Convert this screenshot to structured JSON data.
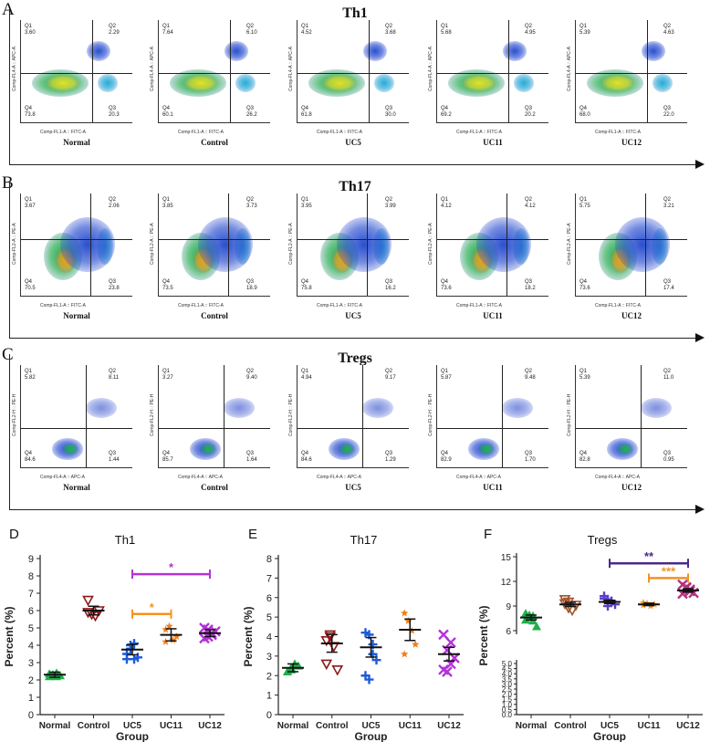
{
  "flow_sections": [
    {
      "letter": "A",
      "title": "Th1",
      "x_axis_label": "Comp-FL1-A :: FITC-A",
      "y_axis_label": "Comp-FL4-A :: APC-A",
      "panels": [
        {
          "group": "Normal",
          "q1": "3.60",
          "q2": "2.29",
          "q3": "20.3",
          "q4": "73.8"
        },
        {
          "group": "Control",
          "q1": "7.64",
          "q2": "6.10",
          "q3": "26.2",
          "q4": "60.1"
        },
        {
          "group": "UC5",
          "q1": "4.52",
          "q2": "3.68",
          "q3": "30.0",
          "q4": "61.8"
        },
        {
          "group": "UC11",
          "q1": "5.68",
          "q2": "4.95",
          "q3": "20.2",
          "q4": "69.2"
        },
        {
          "group": "UC12",
          "q1": "5.39",
          "q2": "4.63",
          "q3": "22.0",
          "q4": "68.0"
        }
      ]
    },
    {
      "letter": "B",
      "title": "Th17",
      "x_axis_label": "Comp-FL1-A :: FITC-A",
      "y_axis_label": "Comp-FL2-A :: PE-A",
      "panels": [
        {
          "group": "Normal",
          "q1": "3.67",
          "q2": "2.06",
          "q3": "23.8",
          "q4": "70.5"
        },
        {
          "group": "Control",
          "q1": "3.85",
          "q2": "3.73",
          "q3": "18.9",
          "q4": "73.5"
        },
        {
          "group": "UC5",
          "q1": "3.95",
          "q2": "3.99",
          "q3": "16.2",
          "q4": "75.8"
        },
        {
          "group": "UC11",
          "q1": "4.12",
          "q2": "4.12",
          "q3": "18.2",
          "q4": "73.6"
        },
        {
          "group": "UC12",
          "q1": "5.75",
          "q2": "3.21",
          "q3": "17.4",
          "q4": "73.6"
        }
      ]
    },
    {
      "letter": "C",
      "title": "Tregs",
      "x_axis_label": "Comp-FL4-A :: APC-A",
      "y_axis_label": "Comp-FL2-H :: PE-H",
      "panels": [
        {
          "group": "Normal",
          "q1": "5.82",
          "q2": "8.11",
          "q3": "1.44",
          "q4": "84.6"
        },
        {
          "group": "Control",
          "q1": "3.27",
          "q2": "9.40",
          "q3": "1.64",
          "q4": "85.7"
        },
        {
          "group": "UC5",
          "q1": "4.94",
          "q2": "9.17",
          "q3": "1.29",
          "q4": "84.6"
        },
        {
          "group": "UC11",
          "q1": "5.87",
          "q2": "9.48",
          "q3": "1.70",
          "q4": "82.9"
        },
        {
          "group": "UC12",
          "q1": "5.39",
          "q2": "11.0",
          "q3": "0.95",
          "q4": "82.8"
        }
      ]
    }
  ],
  "quad_names": {
    "q1": "Q1",
    "q2": "Q2",
    "q3": "Q3",
    "q4": "Q4"
  },
  "chart_data": [
    {
      "letter": "D",
      "type": "scatter",
      "title": "Th1",
      "xlabel": "Group",
      "ylabel": "Percent (%)",
      "categories": [
        "Normal",
        "Control",
        "UC5",
        "UC11",
        "UC12"
      ],
      "ylim": [
        0,
        9
      ],
      "yticks": [
        0,
        1,
        2,
        3,
        4,
        5,
        6,
        7,
        8,
        9
      ],
      "means": [
        2.3,
        6.0,
        3.75,
        4.6,
        4.7
      ],
      "sem": [
        0.15,
        0.25,
        0.3,
        0.35,
        0.2
      ],
      "points": [
        [
          2.2,
          2.3,
          2.4,
          2.25,
          2.35,
          2.3,
          2.2
        ],
        [
          6.6,
          5.8,
          5.7,
          6.0,
          5.9
        ],
        [
          3.2,
          3.8,
          4.1,
          3.3,
          3.5,
          4.0,
          3.2
        ],
        [
          4.9,
          5.1,
          4.3,
          4.5,
          4.2
        ],
        [
          4.4,
          4.9,
          4.6,
          4.8,
          5.0,
          4.5,
          4.7
        ]
      ],
      "markers": [
        "triangle",
        "triangle-down",
        "plus",
        "star",
        "x"
      ],
      "colors": [
        "#1db04b",
        "#8b1a1a",
        "#1e5bd6",
        "#f07e16",
        "#b233d9"
      ],
      "significance": [
        {
          "from": 2,
          "to": 4,
          "y": 8.1,
          "label": "*",
          "color": "#b233d9"
        },
        {
          "from": 2,
          "to": 3,
          "y": 5.8,
          "label": "*",
          "color": "#f39322"
        }
      ]
    },
    {
      "letter": "E",
      "type": "scatter",
      "title": "Th17",
      "xlabel": "Group",
      "ylabel": "Percent (%)",
      "categories": [
        "Normal",
        "Control",
        "UC5",
        "UC11",
        "UC12"
      ],
      "ylim": [
        0,
        8
      ],
      "yticks": [
        0,
        1,
        2,
        3,
        4,
        5,
        6,
        7,
        8
      ],
      "means": [
        2.4,
        3.65,
        3.45,
        4.35,
        3.1
      ],
      "sem": [
        0.2,
        0.45,
        0.5,
        0.55,
        0.35
      ],
      "points": [
        [
          2.2,
          2.3,
          2.6,
          2.5,
          2.2,
          2.4
        ],
        [
          3.8,
          4.0,
          3.5,
          2.3,
          2.6,
          4.1
        ],
        [
          4.2,
          4.1,
          3.1,
          2.8,
          2.0,
          1.8,
          3.6
        ],
        [
          5.2,
          4.8,
          4.3,
          3.6,
          3.1
        ],
        [
          4.1,
          3.3,
          2.6,
          2.9,
          2.3,
          2.2,
          3.7
        ]
      ],
      "markers": [
        "triangle",
        "triangle-down",
        "plus",
        "star",
        "x"
      ],
      "colors": [
        "#1db04b",
        "#8b1a1a",
        "#1e5bd6",
        "#f07e16",
        "#b233d9"
      ],
      "significance": []
    },
    {
      "letter": "F",
      "type": "scatter",
      "title": "Tregs",
      "xlabel": "Group",
      "ylabel": "Percent (%)",
      "categories": [
        "Normal",
        "Control",
        "UC5",
        "UC11",
        "UC12"
      ],
      "ylim": [
        0,
        15
      ],
      "axis_break": [
        5,
        6
      ],
      "yticks_lower": [
        "0.0",
        "0.5",
        "1.0",
        "1.5",
        "2.0",
        "2.5",
        "3.0",
        "3.5",
        "4.0",
        "4.5",
        "5.0"
      ],
      "yticks_upper": [
        "6",
        "9",
        "12",
        "15"
      ],
      "means": [
        7.6,
        9.2,
        9.5,
        9.2,
        10.9
      ],
      "sem": [
        0.3,
        0.25,
        0.2,
        0.15,
        0.2
      ],
      "points": [
        [
          8.1,
          7.6,
          7.2,
          6.5,
          7.3,
          7.9,
          7.8
        ],
        [
          9.8,
          9.5,
          8.5,
          9.1,
          9.3,
          8.8
        ],
        [
          10.2,
          9.8,
          9.5,
          9.2,
          9.9,
          9.0,
          9.6
        ],
        [
          9.4,
          9.3,
          9.0,
          9.2,
          9.1
        ],
        [
          11.6,
          11.3,
          11.0,
          10.6,
          10.5,
          11.2,
          10.8
        ]
      ],
      "markers": [
        "triangle",
        "triangle-down",
        "plus",
        "star",
        "x"
      ],
      "colors": [
        "#1db04b",
        "#a0522d",
        "#5b3fc4",
        "#f39322",
        "#b23380"
      ],
      "significance": [
        {
          "from": 2,
          "to": 4,
          "y": 14.2,
          "label": "**",
          "color": "#4b2a8a"
        },
        {
          "from": 3,
          "to": 4,
          "y": 12.4,
          "label": "***",
          "color": "#f39322"
        }
      ]
    }
  ]
}
